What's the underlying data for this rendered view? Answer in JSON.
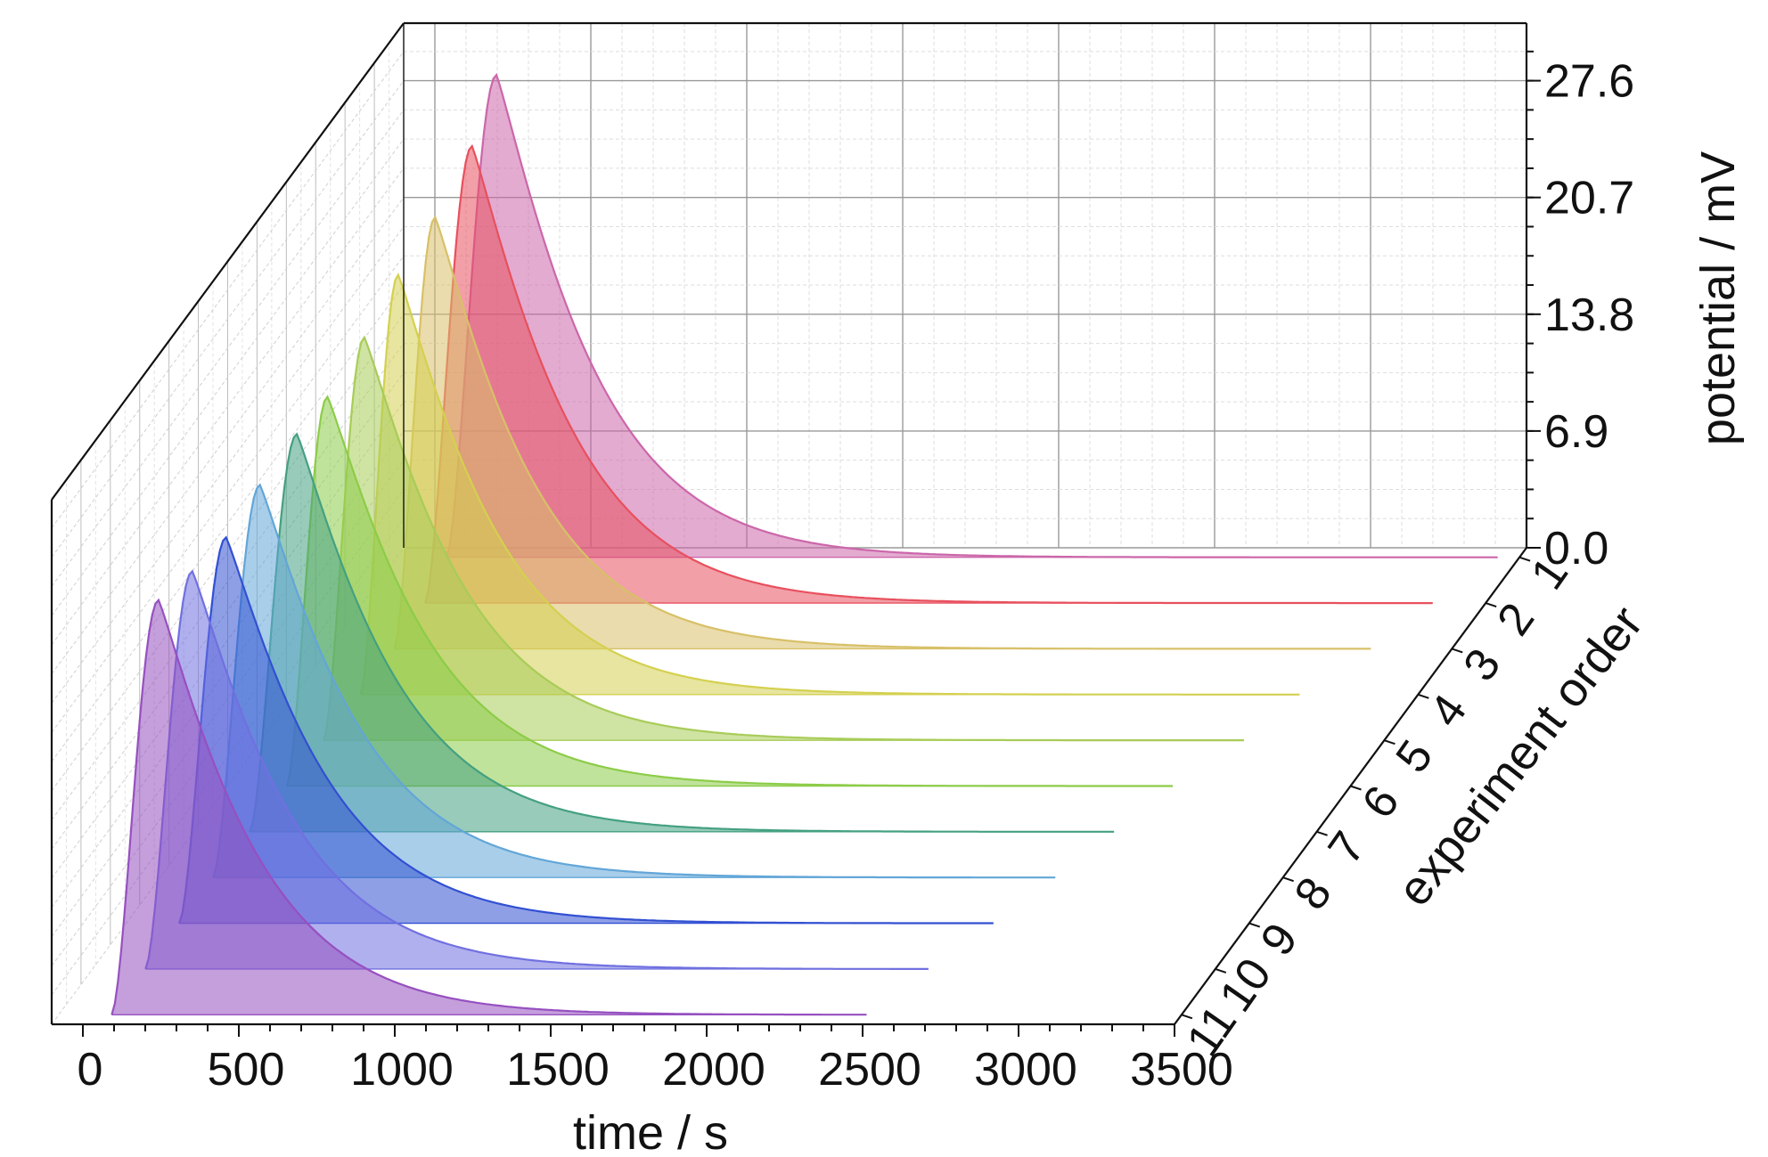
{
  "chart_data": {
    "type": "area",
    "projection": "3d-waterfall",
    "title": "",
    "xlabel": "time / s",
    "ylabel": "experiment order",
    "zlabel": "potential / mV",
    "xlim": [
      -100,
      3500
    ],
    "zlim": [
      0,
      31
    ],
    "x_ticks": [
      0,
      500,
      1000,
      1500,
      2000,
      2500,
      3000,
      3500
    ],
    "z_ticks": [
      "0.0",
      "6.9",
      "13.8",
      "20.7",
      "27.6"
    ],
    "order_ticks": [
      "1",
      "2",
      "3",
      "4",
      "5",
      "6",
      "7",
      "8",
      "9",
      "10",
      "11"
    ],
    "grid": true,
    "legend": "none",
    "series": [
      {
        "name": "1",
        "color": "#cc66aa",
        "t_start": 60,
        "t_peak": 220,
        "peak": 28.5,
        "t_end": 3430
      },
      {
        "name": "2",
        "color": "#e8505e",
        "t_start": 100,
        "t_peak": 250,
        "peak": 27.0,
        "t_end": 3330
      },
      {
        "name": "3",
        "color": "#d8c068",
        "t_start": 110,
        "t_peak": 240,
        "peak": 25.5,
        "t_end": 3240
      },
      {
        "name": "4",
        "color": "#d4d050",
        "t_start": 110,
        "t_peak": 230,
        "peak": 24.8,
        "t_end": 3120
      },
      {
        "name": "5",
        "color": "#a8cc58",
        "t_start": 100,
        "t_peak": 230,
        "peak": 23.8,
        "t_end": 3050
      },
      {
        "name": "6",
        "color": "#8ccc48",
        "t_start": 90,
        "t_peak": 220,
        "peak": 23.0,
        "t_end": 2930
      },
      {
        "name": "7",
        "color": "#44a080",
        "t_start": 80,
        "t_peak": 230,
        "peak": 23.5,
        "t_end": 2850
      },
      {
        "name": "8",
        "color": "#62a6d8",
        "t_start": 70,
        "t_peak": 220,
        "peak": 23.2,
        "t_end": 2770
      },
      {
        "name": "9",
        "color": "#3250d2",
        "t_start": 70,
        "t_peak": 220,
        "peak": 22.8,
        "t_end": 2680
      },
      {
        "name": "10",
        "color": "#7070e0",
        "t_start": 70,
        "t_peak": 220,
        "peak": 23.5,
        "t_end": 2580
      },
      {
        "name": "11",
        "color": "#9650c0",
        "t_start": 70,
        "t_peak": 220,
        "peak": 24.5,
        "t_end": 2490
      }
    ]
  }
}
